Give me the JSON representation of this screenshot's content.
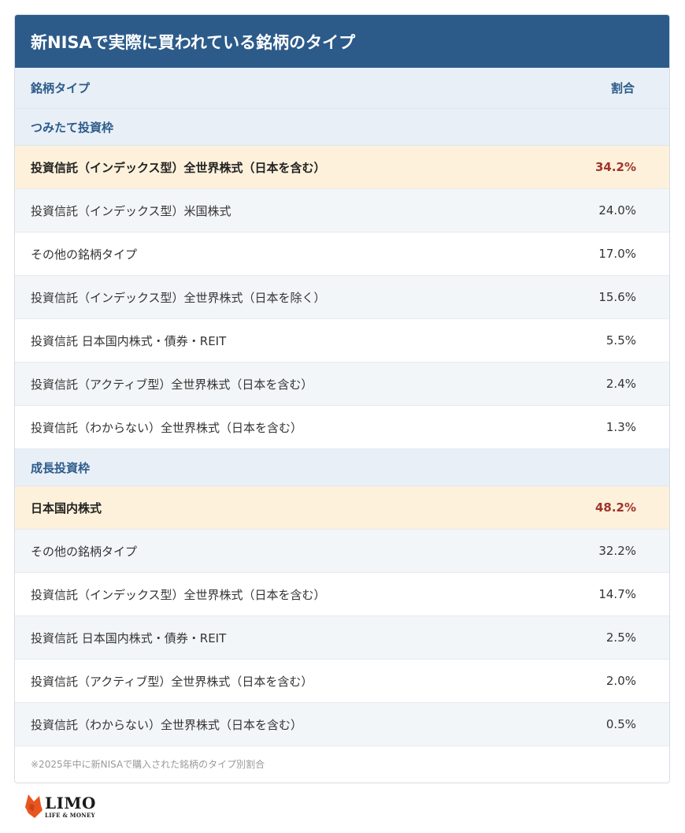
{
  "title": "新NISAで実際に買われている銘柄のタイプ",
  "header": {
    "col_type": "銘柄タイプ",
    "col_ratio": "割合"
  },
  "tsumitate": {
    "label": "つみたて投資枠",
    "rows": [
      {
        "name": "投資信託（インデックス型）全世界株式（日本を含む）",
        "value": "34.2%"
      },
      {
        "name": "投資信託（インデックス型）米国株式",
        "value": "24.0%"
      },
      {
        "name": "その他の銘柄タイプ",
        "value": "17.0%"
      },
      {
        "name": "投資信託（インデックス型）全世界株式（日本を除く）",
        "value": "15.6%"
      },
      {
        "name": "投資信託 日本国内株式・債券・REIT",
        "value": "5.5%"
      },
      {
        "name": "投資信託（アクティブ型）全世界株式（日本を含む）",
        "value": "2.4%"
      },
      {
        "name": "投資信託（わからない）全世界株式（日本を含む）",
        "value": "1.3%"
      }
    ]
  },
  "seicho": {
    "label": "成長投資枠",
    "rows": [
      {
        "name": "日本国内株式",
        "value": "48.2%"
      },
      {
        "name": "その他の銘柄タイプ",
        "value": "32.2%"
      },
      {
        "name": "投資信託（インデックス型）全世界株式（日本を含む）",
        "value": "14.7%"
      },
      {
        "name": "投資信託 日本国内株式・債券・REIT",
        "value": "2.5%"
      },
      {
        "name": "投資信託（アクティブ型）全世界株式（日本を含む）",
        "value": "2.0%"
      },
      {
        "name": "投資信託（わからない）全世界株式（日本を含む）",
        "value": "0.5%"
      }
    ]
  },
  "footnote": "※2025年中に新NISAで購入された銘柄のタイプ別割合",
  "logo": {
    "main": "LIMO",
    "sub": "LIFE & MONEY",
    "icon": "fox-head-icon",
    "icon_color": "#e8561f"
  },
  "colors": {
    "title_bg": "#2c5b8a",
    "highlight_bg": "#fdf1db",
    "highlight_value": "#a0342a"
  }
}
